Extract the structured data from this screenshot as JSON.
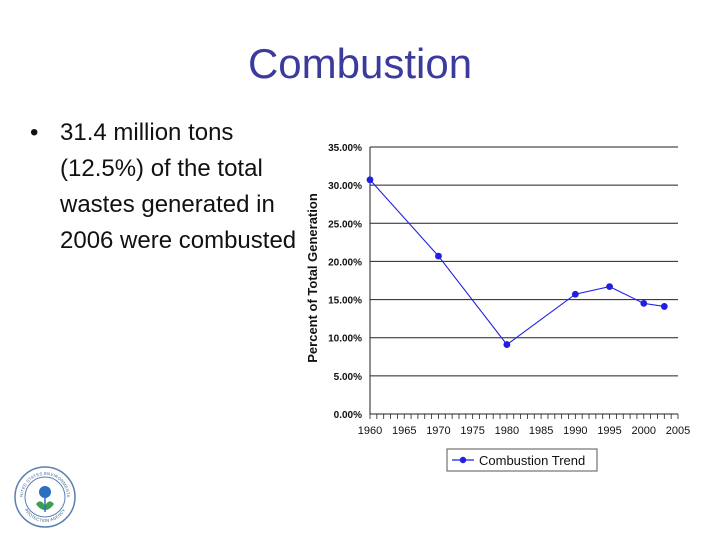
{
  "slide": {
    "title": "Combustion",
    "bullet_symbol": "•",
    "bullet": "31.4 million tons (12.5%) of the total wastes generated in 2006 were combusted"
  },
  "logo": {
    "name": "epa-seal",
    "text": "UNITED STATES ENVIRONMENTAL PROTECTION AGENCY"
  },
  "chart_data": {
    "type": "line",
    "ylabel": "Percent of Total Generation",
    "xlabel": "",
    "x": [
      1960,
      1970,
      1980,
      1990,
      1995,
      2000,
      2003
    ],
    "series": [
      {
        "name": "Combustion Trend",
        "values": [
          30.7,
          20.7,
          9.1,
          15.7,
          16.7,
          14.5,
          14.1
        ],
        "color": "#2020e0"
      }
    ],
    "xlim": [
      1960,
      2005
    ],
    "ylim": [
      0,
      35
    ],
    "x_ticks": [
      1960,
      1965,
      1970,
      1975,
      1980,
      1985,
      1990,
      1995,
      2000,
      2005
    ],
    "y_ticks": [
      0,
      5,
      10,
      15,
      20,
      25,
      30,
      35
    ],
    "y_tick_labels": [
      "0.00%",
      "5.00%",
      "10.00%",
      "15.00%",
      "20.00%",
      "25.00%",
      "30.00%",
      "35.00%"
    ],
    "x_tick_labels": [
      "1960",
      "1965",
      "1970",
      "1975",
      "1980",
      "1985",
      "1990",
      "1995",
      "2000",
      "2005"
    ],
    "grid": "horizontal",
    "legend": "bottom"
  }
}
